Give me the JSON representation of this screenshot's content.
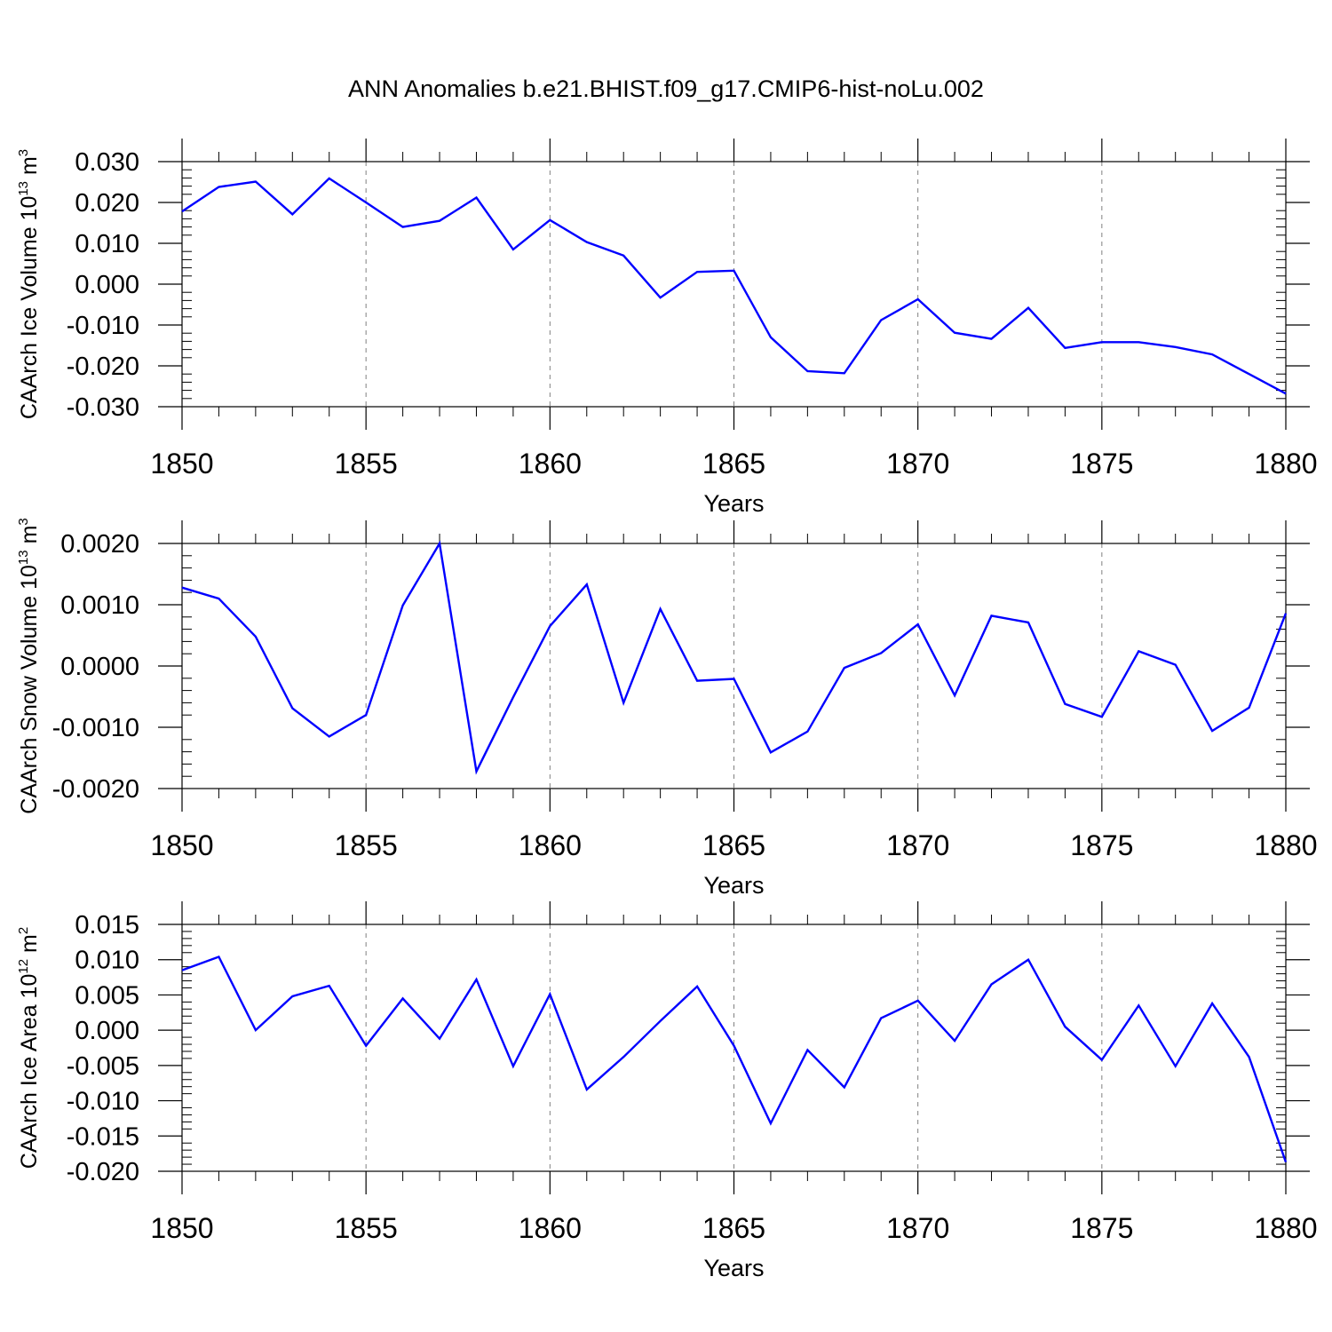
{
  "title": "ANN Anomalies b.e21.BHIST.f09_g17.CMIP6-hist-noLu.002",
  "colors": {
    "series": "#0000ff",
    "axis": "#000000",
    "grid": "#808080"
  },
  "chart_data": [
    {
      "type": "line",
      "ylabel": {
        "text": "CAArch Ice Volume 10",
        "exp": "13",
        "unit": " m",
        "unit_exp": "3"
      },
      "xlabel": "Years",
      "xlim": [
        1850,
        1880
      ],
      "ylim": [
        -0.03,
        0.03
      ],
      "yticks": [
        0.03,
        0.02,
        0.01,
        0.0,
        -0.01,
        -0.02,
        -0.03
      ],
      "ytick_labels": [
        "0.030",
        "0.020",
        "0.010",
        "0.000",
        "-0.010",
        "-0.020",
        "-0.030"
      ],
      "xticks": [
        1850,
        1855,
        1860,
        1865,
        1870,
        1875,
        1880
      ],
      "xtick_labels": [
        "1850",
        "1855",
        "1860",
        "1865",
        "1870",
        "1875",
        "1880"
      ],
      "grid": "vertical dashed at major x ticks",
      "x": [
        1850,
        1851,
        1852,
        1853,
        1854,
        1855,
        1856,
        1857,
        1858,
        1859,
        1860,
        1861,
        1862,
        1863,
        1864,
        1865,
        1866,
        1867,
        1868,
        1869,
        1870,
        1871,
        1872,
        1873,
        1874,
        1875,
        1876,
        1877,
        1878,
        1879,
        1880
      ],
      "y": [
        0.0178,
        0.0238,
        0.0251,
        0.0171,
        0.0259,
        0.02,
        0.014,
        0.0155,
        0.0212,
        0.0085,
        0.0157,
        0.0103,
        0.007,
        -0.0033,
        0.003,
        0.0033,
        -0.013,
        -0.0213,
        -0.0218,
        -0.0088,
        -0.0037,
        -0.0119,
        -0.0134,
        -0.0058,
        -0.0156,
        -0.0142,
        -0.0142,
        -0.0154,
        -0.0172,
        -0.022,
        -0.0268
      ]
    },
    {
      "type": "line",
      "ylabel": {
        "text": "CAArch Snow Volume 10",
        "exp": "13",
        "unit": " m",
        "unit_exp": "3"
      },
      "xlabel": "Years",
      "xlim": [
        1850,
        1880
      ],
      "ylim": [
        -0.002,
        0.002
      ],
      "yticks": [
        0.002,
        0.001,
        0.0,
        -0.001,
        -0.002
      ],
      "ytick_labels": [
        "0.0020",
        "0.0010",
        "0.0000",
        "-0.0010",
        "-0.0020"
      ],
      "xticks": [
        1850,
        1855,
        1860,
        1865,
        1870,
        1875,
        1880
      ],
      "xtick_labels": [
        "1850",
        "1855",
        "1860",
        "1865",
        "1870",
        "1875",
        "1880"
      ],
      "grid": "vertical dashed at major x ticks",
      "x": [
        1850,
        1851,
        1852,
        1853,
        1854,
        1855,
        1856,
        1857,
        1858,
        1859,
        1860,
        1861,
        1862,
        1863,
        1864,
        1865,
        1866,
        1867,
        1868,
        1869,
        1870,
        1871,
        1872,
        1873,
        1874,
        1875,
        1876,
        1877,
        1878,
        1879,
        1880
      ],
      "y": [
        0.00128,
        0.0011,
        0.00048,
        -0.00069,
        -0.00115,
        -0.0008,
        0.00099,
        0.002,
        -0.00172,
        -0.00051,
        0.00065,
        0.00133,
        -0.0006,
        0.00093,
        -0.00024,
        -0.00021,
        -0.00141,
        -0.00107,
        -3e-05,
        0.00021,
        0.00068,
        -0.00048,
        0.00082,
        0.00071,
        -0.00062,
        -0.00083,
        0.00024,
        2e-05,
        -0.00106,
        -0.00068,
        0.00086
      ]
    },
    {
      "type": "line",
      "ylabel": {
        "text": "CAArch Ice Area 10",
        "exp": "12",
        "unit": " m",
        "unit_exp": "2"
      },
      "xlabel": "Years",
      "xlim": [
        1850,
        1880
      ],
      "ylim": [
        -0.02,
        0.015
      ],
      "yticks": [
        0.015,
        0.01,
        0.005,
        0.0,
        -0.005,
        -0.01,
        -0.015,
        -0.02
      ],
      "ytick_labels": [
        "0.015",
        "0.010",
        "0.005",
        "0.000",
        "-0.005",
        "-0.010",
        "-0.015",
        "-0.020"
      ],
      "xticks": [
        1850,
        1855,
        1860,
        1865,
        1870,
        1875,
        1880
      ],
      "xtick_labels": [
        "1850",
        "1855",
        "1860",
        "1865",
        "1870",
        "1875",
        "1880"
      ],
      "grid": "vertical dashed at major x ticks",
      "x": [
        1850,
        1851,
        1852,
        1853,
        1854,
        1855,
        1856,
        1857,
        1858,
        1859,
        1860,
        1861,
        1862,
        1863,
        1864,
        1865,
        1866,
        1867,
        1868,
        1869,
        1870,
        1871,
        1872,
        1873,
        1874,
        1875,
        1876,
        1877,
        1878,
        1879,
        1880
      ],
      "y": [
        0.0085,
        0.0104,
        0.0,
        0.0048,
        0.0063,
        -0.0022,
        0.0045,
        -0.0012,
        0.0072,
        -0.0051,
        0.0051,
        -0.0084,
        -0.0038,
        0.0013,
        0.0062,
        -0.0022,
        -0.0132,
        -0.0028,
        -0.0081,
        0.0017,
        0.0042,
        -0.0015,
        0.0065,
        0.01,
        0.0005,
        -0.0042,
        0.0035,
        -0.0051,
        0.0038,
        -0.0038,
        -0.0187
      ]
    }
  ]
}
